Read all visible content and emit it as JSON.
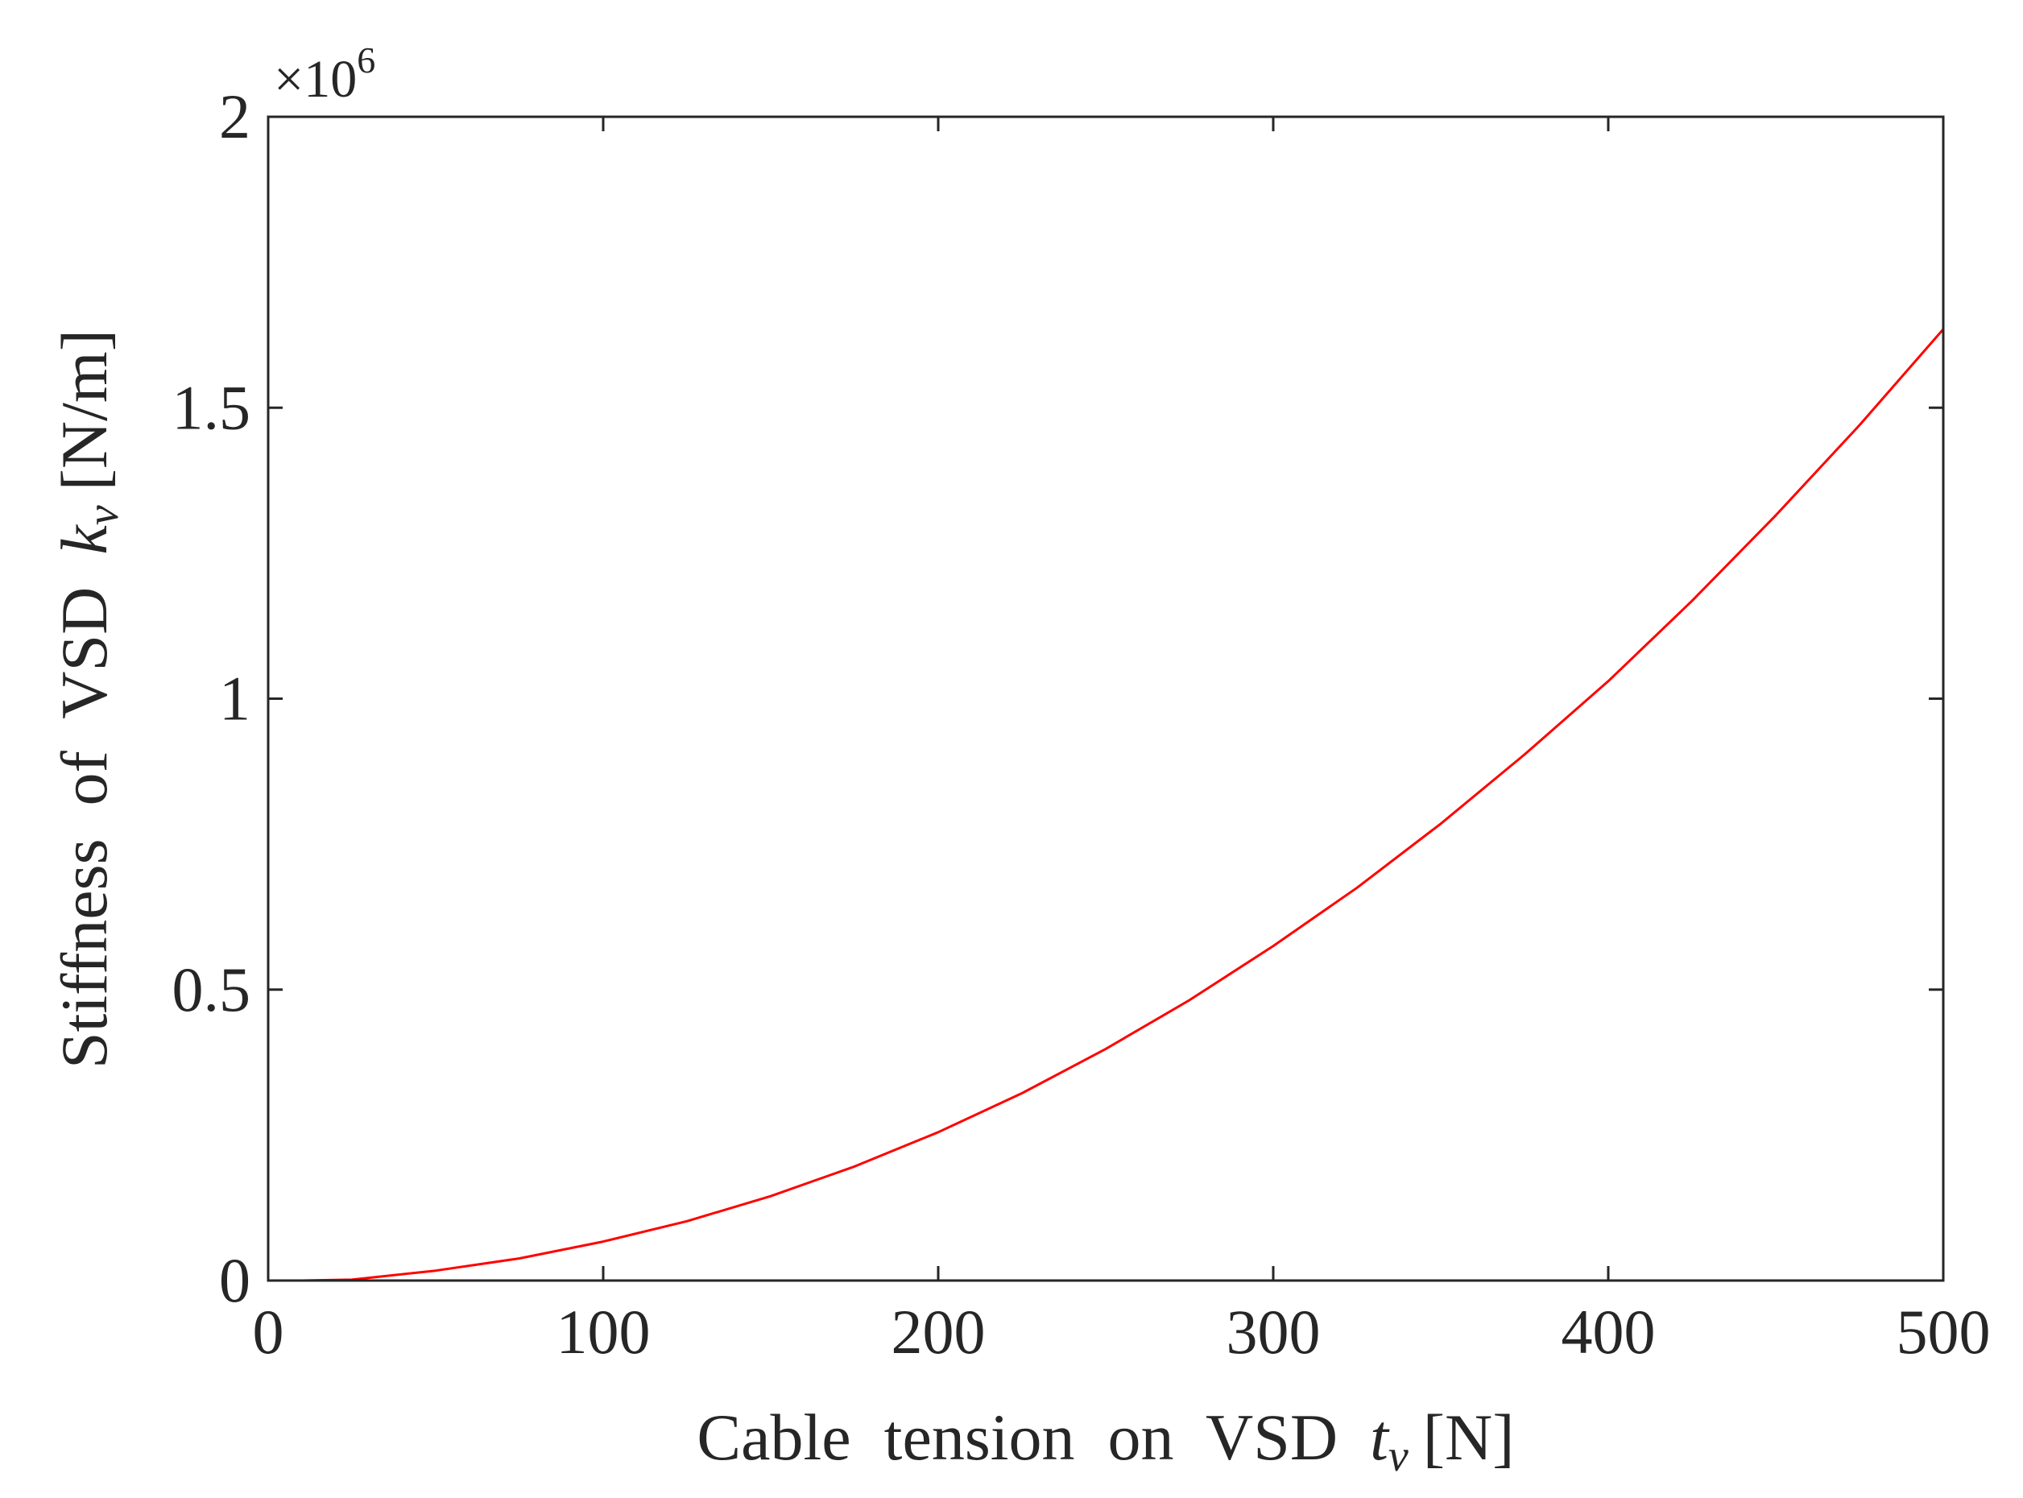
{
  "chart_data": {
    "type": "line",
    "title": "",
    "xlabel": "Cable  tension  on  VSD",
    "xlabel_symbol": "t",
    "xlabel_subscript": "v",
    "xlabel_unit": "[N]",
    "ylabel": "Stiffness  of  VSD",
    "ylabel_symbol": "k",
    "ylabel_subscript": "v",
    "ylabel_unit": "[N/m]",
    "xlim": [
      0,
      500
    ],
    "ylim": [
      0,
      2
    ],
    "x_ticks": [
      0,
      100,
      200,
      300,
      400,
      500
    ],
    "x_tick_labels": [
      "0",
      "100",
      "200",
      "300",
      "400",
      "500"
    ],
    "y_ticks": [
      0,
      0.5,
      1,
      1.5,
      2
    ],
    "y_tick_labels": [
      "0",
      "0.5",
      "1",
      "1.5",
      "2"
    ],
    "y_exponent_base": "×10",
    "y_exponent_power": "6",
    "grid": false,
    "legend": "none",
    "series": [
      {
        "color": "#ff0000",
        "x": [
          10,
          25,
          50,
          75,
          100,
          125,
          150,
          175,
          200,
          225,
          250,
          275,
          300,
          325,
          350,
          375,
          400,
          425,
          450,
          475,
          500
        ],
        "y": [
          0.0,
          0.0015,
          0.017,
          0.038,
          0.067,
          0.102,
          0.145,
          0.196,
          0.255,
          0.322,
          0.398,
          0.482,
          0.575,
          0.675,
          0.785,
          0.904,
          1.03,
          1.168,
          1.315,
          1.47,
          1.635
        ]
      }
    ]
  }
}
